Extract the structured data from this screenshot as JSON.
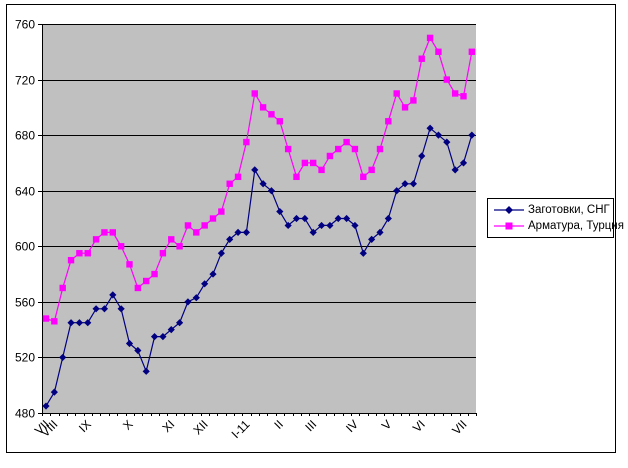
{
  "window": {
    "background_color": "#FFFFFF",
    "frame_border_color": "#000000"
  },
  "chart_data": {
    "type": "line",
    "title": "",
    "xlabel": "",
    "ylabel": "",
    "ylim": [
      480,
      760
    ],
    "y_ticks": [
      480,
      520,
      560,
      600,
      640,
      680,
      720,
      760
    ],
    "x_labels": [
      "VII",
      "VIII",
      "IX",
      "X",
      "XI",
      "XII",
      "I-11",
      "II",
      "III",
      "IV",
      "V",
      "VI",
      "VII"
    ],
    "x_label_indices": [
      0,
      1,
      5,
      10,
      15,
      19,
      24,
      28,
      32,
      37,
      41,
      45,
      50
    ],
    "n_points": 52,
    "grid": true,
    "plot_bg_color": "#C0C0C0",
    "grid_color": "#000000",
    "axis_color": "#000000",
    "legend_position": "right",
    "series": [
      {
        "name": "Заготовки, СНГ",
        "color": "#000080",
        "marker": "diamond",
        "values": [
          485,
          495,
          520,
          545,
          545,
          545,
          555,
          555,
          565,
          555,
          530,
          525,
          510,
          535,
          535,
          540,
          545,
          560,
          563,
          573,
          580,
          595,
          605,
          610,
          610,
          655,
          645,
          640,
          625,
          615,
          620,
          620,
          610,
          615,
          615,
          620,
          620,
          615,
          595,
          605,
          610,
          620,
          640,
          645,
          645,
          665,
          685,
          680,
          675,
          655,
          660,
          680
        ]
      },
      {
        "name": "Арматура, Турция",
        "color": "#FF00FF",
        "marker": "square",
        "values": [
          548,
          546,
          570,
          590,
          595,
          595,
          605,
          610,
          610,
          600,
          587,
          570,
          575,
          580,
          595,
          605,
          600,
          615,
          610,
          615,
          620,
          625,
          645,
          650,
          675,
          710,
          700,
          695,
          690,
          670,
          650,
          660,
          660,
          655,
          665,
          670,
          675,
          670,
          650,
          655,
          670,
          690,
          710,
          700,
          705,
          735,
          750,
          740,
          720,
          710,
          708,
          740
        ]
      }
    ]
  },
  "legend": {
    "items": [
      {
        "label": "Заготовки, СНГ"
      },
      {
        "label": "Арматура, Турция"
      }
    ]
  }
}
